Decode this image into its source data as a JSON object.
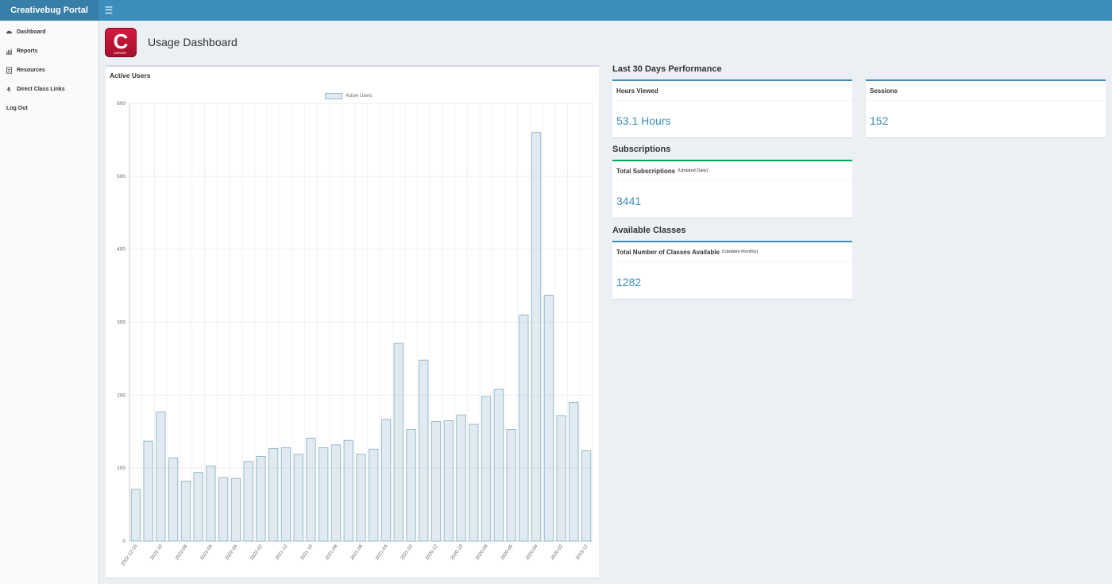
{
  "app": {
    "brand": "Creativebug Portal",
    "menu_icon": "bars-icon"
  },
  "sidebar": {
    "items": [
      {
        "label": "Dashboard",
        "icon": "dashboard-icon"
      },
      {
        "label": "Reports",
        "icon": "bar-chart-icon"
      },
      {
        "label": "Resources",
        "icon": "file-icon"
      },
      {
        "label": "Direct Class Links",
        "icon": "link-icon"
      },
      {
        "label": "Log Out",
        "icon": ""
      }
    ]
  },
  "page": {
    "title": "Usage Dashboard",
    "logo_letter": "C",
    "logo_caption": "LIBRARY"
  },
  "active_users": {
    "title": "Active Users"
  },
  "chart_data": {
    "type": "bar",
    "legend": [
      "Active Users"
    ],
    "legend_position": "top-center",
    "grid": true,
    "ylim": [
      0,
      600
    ],
    "yticks": [
      0,
      100,
      200,
      300,
      400,
      500,
      600
    ],
    "categories": [
      "2022-12-16",
      "2022-11",
      "2022-10",
      "2022-09",
      "2022-08",
      "2022-07",
      "2022-06",
      "2022-05",
      "2022-04",
      "2022-03",
      "2022-02",
      "2022-01",
      "2021-12",
      "2021-11",
      "2021-10",
      "2021-09",
      "2021-08",
      "2021-07",
      "2021-06",
      "2021-05",
      "2021-04",
      "2021-03",
      "2021-02",
      "2021-01",
      "2020-12",
      "2020-11",
      "2020-10",
      "2020-09",
      "2020-08",
      "2020-07",
      "2020-06",
      "2020-05",
      "2020-04",
      "2020-03",
      "2020-02",
      "2020-01",
      "2019-12"
    ],
    "xtick_labels": [
      "2022-12-16",
      "",
      "2022-10",
      "",
      "2022-08",
      "",
      "2022-06",
      "",
      "2022-04",
      "",
      "2022-02",
      "",
      "2021-12",
      "",
      "2021-10",
      "",
      "2021-08",
      "",
      "2021-06",
      "",
      "2021-04",
      "",
      "2021-02",
      "",
      "2020-12",
      "",
      "2020-10",
      "",
      "2020-08",
      "",
      "2020-06",
      "",
      "2020-04",
      "",
      "2020-02",
      "",
      "2019-12"
    ],
    "series": [
      {
        "name": "Active Users",
        "values": [
          71,
          137,
          177,
          114,
          82,
          94,
          103,
          87,
          86,
          109,
          116,
          127,
          128,
          119,
          141,
          128,
          132,
          138,
          119,
          126,
          167,
          271,
          153,
          248,
          164,
          165,
          173,
          160,
          198,
          208,
          153,
          310,
          560,
          337,
          172,
          190,
          124
        ]
      }
    ],
    "colors": {
      "fill": "rgba(151,187,205,0.3)",
      "stroke": "#97bbcd"
    }
  },
  "performance": {
    "title": "Last 30 Days Performance",
    "hours": {
      "label": "Hours Viewed",
      "value": "53.1 Hours"
    },
    "sessions": {
      "label": "Sessions",
      "value": "152"
    }
  },
  "subscriptions": {
    "title": "Subscriptions",
    "label": "Total Subscriptions",
    "note": "(Updated Daily)",
    "value": "3441"
  },
  "classes": {
    "title": "Available Classes",
    "label": "Total Number of Classes Available",
    "note": "(Updated Monthly)",
    "value": "1282"
  },
  "colors": {
    "header": "#3c8dbc",
    "accent_blue": "#3c8dbc",
    "accent_green": "#00a65a",
    "value_text": "#3c8dbc"
  }
}
